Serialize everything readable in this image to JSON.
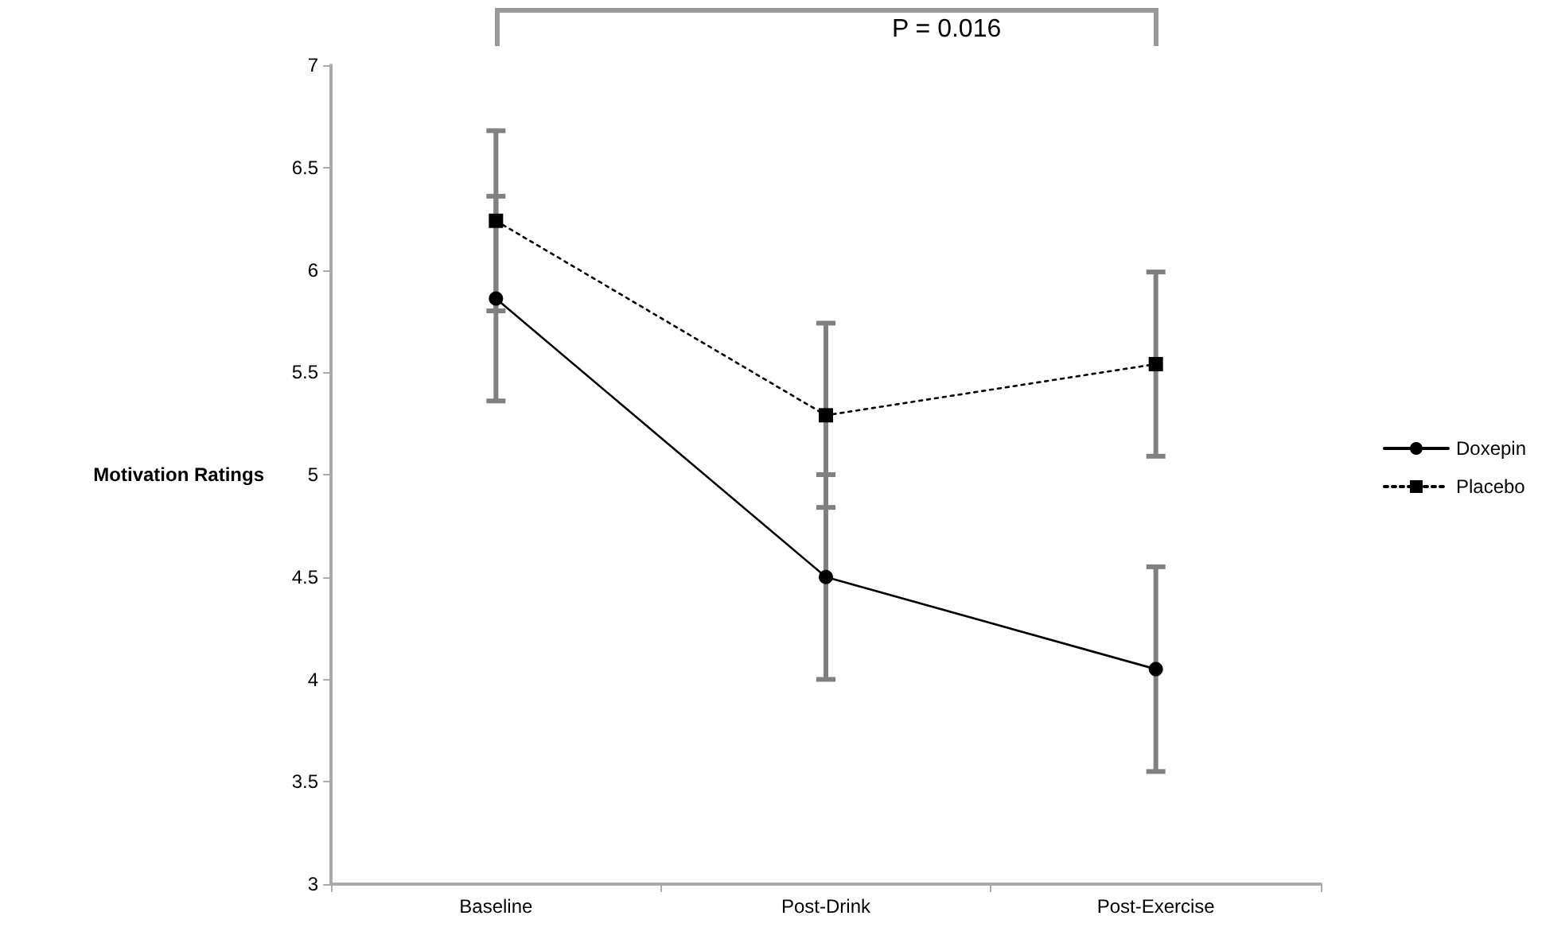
{
  "chart_data": {
    "type": "line",
    "ylabel": "Motivation Ratings",
    "categories": [
      "Baseline",
      "Post-Drink",
      "Post-Exercise"
    ],
    "series": [
      {
        "name": "Doxepin",
        "color": "#000000",
        "marker": "circle",
        "line_style": "solid",
        "values": [
          5.86,
          4.5,
          4.05
        ],
        "errors": [
          0.5,
          0.5,
          0.5
        ]
      },
      {
        "name": "Placebo",
        "color": "#000000",
        "marker": "square",
        "line_style": "dotted",
        "values": [
          6.24,
          5.29,
          5.54
        ],
        "errors": [
          0.44,
          0.45,
          0.45
        ]
      }
    ],
    "ylim": [
      3,
      7
    ],
    "yticks": [
      3,
      3.5,
      4,
      4.5,
      5,
      5.5,
      6,
      6.5,
      7
    ],
    "grid": false,
    "legend": "right",
    "annotations": [
      "P = 0.016"
    ]
  }
}
